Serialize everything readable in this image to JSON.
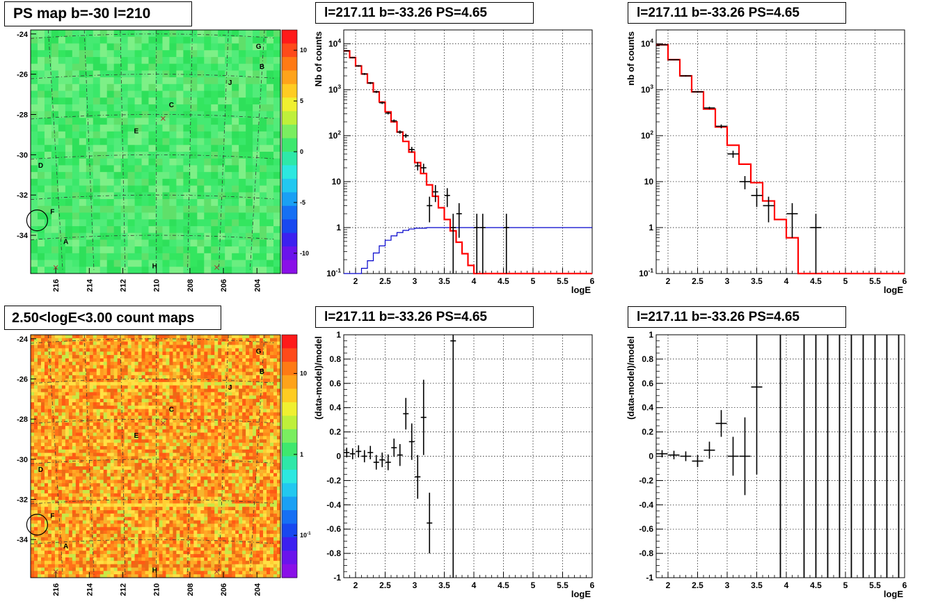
{
  "titles": {
    "map_ps": "PS map b=-30 l=210",
    "map_counts": "2.50<logE<3.00 count maps",
    "spectrum_left": "l=217.11 b=-33.26 PS=4.65",
    "spectrum_right": "l=217.11 b=-33.26 PS=4.65",
    "residual_left": "l=217.11 b=-33.26 PS=4.65",
    "residual_right": "l=217.11 b=-33.26 PS=4.65"
  },
  "colors": {
    "model_line": "#ff0000",
    "acceptance_line": "#0000cc",
    "data_points": "#000000",
    "grid": "#000000"
  },
  "chart_data": [
    {
      "id": "ps_map",
      "type": "heatmap",
      "title": "PS map b=-30 l=210",
      "x_ticks": [
        "216",
        "214",
        "212",
        "210",
        "208",
        "206",
        "204"
      ],
      "xlim": [
        217.5,
        202.6
      ],
      "y_ticks": [
        "-24",
        "-26",
        "-28",
        "-30",
        "-32",
        "-34"
      ],
      "ylim": [
        -35.9,
        -23.8
      ],
      "colorbar_ticks": [
        "10",
        "5",
        "0",
        "-5",
        "-10"
      ],
      "colorbar_range": [
        -12,
        12
      ],
      "source_labels": [
        {
          "name": "G",
          "l": 203.9,
          "b": -24.6
        },
        {
          "name": "B",
          "l": 203.7,
          "b": -25.6
        },
        {
          "name": "J",
          "l": 205.6,
          "b": -26.4
        },
        {
          "name": "C",
          "l": 209.1,
          "b": -27.5
        },
        {
          "name": "E",
          "l": 211.2,
          "b": -28.8
        },
        {
          "name": "D",
          "l": 216.9,
          "b": -30.5
        },
        {
          "name": "F",
          "l": 216.2,
          "b": -32.8
        },
        {
          "name": "A",
          "l": 215.4,
          "b": -34.3
        },
        {
          "name": "H",
          "l": 210.1,
          "b": -35.5
        }
      ],
      "crosses": [
        {
          "l": 209.6,
          "b": -28.2
        },
        {
          "l": 216.0,
          "b": -35.6
        },
        {
          "l": 206.4,
          "b": -35.6
        }
      ],
      "circle": {
        "l": 217.11,
        "b": -33.26
      }
    },
    {
      "id": "count_map",
      "type": "heatmap",
      "title": "2.50<logE<3.00 count maps",
      "x_ticks": [
        "216",
        "214",
        "212",
        "210",
        "208",
        "206",
        "204"
      ],
      "xlim": [
        217.5,
        202.6
      ],
      "y_ticks": [
        "-24",
        "-26",
        "-28",
        "-30",
        "-32",
        "-34"
      ],
      "ylim": [
        -35.9,
        -23.8
      ],
      "colorbar_ticks": [
        "10",
        "1",
        "10-1"
      ],
      "colorbar_range": [
        0.03,
        30
      ],
      "source_labels": [
        {
          "name": "G",
          "l": 203.9,
          "b": -24.6
        },
        {
          "name": "B",
          "l": 203.7,
          "b": -25.6
        },
        {
          "name": "J",
          "l": 205.6,
          "b": -26.4
        },
        {
          "name": "C",
          "l": 209.1,
          "b": -27.5
        },
        {
          "name": "E",
          "l": 211.2,
          "b": -28.8
        },
        {
          "name": "D",
          "l": 216.9,
          "b": -30.5
        },
        {
          "name": "F",
          "l": 216.2,
          "b": -32.8
        },
        {
          "name": "A",
          "l": 215.4,
          "b": -34.3
        },
        {
          "name": "H",
          "l": 210.1,
          "b": -35.5
        }
      ],
      "crosses": [
        {
          "l": 209.6,
          "b": -28.2
        },
        {
          "l": 216.0,
          "b": -35.6
        },
        {
          "l": 206.4,
          "b": -35.6
        }
      ],
      "circle": {
        "l": 217.11,
        "b": -33.26
      }
    },
    {
      "id": "spectrum_left",
      "type": "line",
      "title": "l=217.11 b=-33.26 PS=4.65",
      "xlabel": "logE",
      "ylabel": "Nb of counts",
      "xlim": [
        1.8,
        6
      ],
      "ylim": [
        0.1,
        20000
      ],
      "log_y": true,
      "x_ticks": [
        "2",
        "2.5",
        "3",
        "3.5",
        "4",
        "4.5",
        "5",
        "5.5",
        "6"
      ],
      "y_ticks": [
        "10-1",
        "1",
        "10",
        "102",
        "103",
        "104"
      ],
      "grid": true,
      "model_steps": [
        {
          "x0": 1.8,
          "x1": 1.9,
          "y": 7000
        },
        {
          "x0": 1.9,
          "x1": 2.0,
          "y": 5000
        },
        {
          "x0": 2.0,
          "x1": 2.1,
          "y": 3300
        },
        {
          "x0": 2.1,
          "x1": 2.2,
          "y": 2200
        },
        {
          "x0": 2.2,
          "x1": 2.3,
          "y": 1400
        },
        {
          "x0": 2.3,
          "x1": 2.4,
          "y": 900
        },
        {
          "x0": 2.4,
          "x1": 2.5,
          "y": 540
        },
        {
          "x0": 2.5,
          "x1": 2.6,
          "y": 330
        },
        {
          "x0": 2.6,
          "x1": 2.7,
          "y": 200
        },
        {
          "x0": 2.7,
          "x1": 2.8,
          "y": 120
        },
        {
          "x0": 2.8,
          "x1": 2.9,
          "y": 75
        },
        {
          "x0": 2.9,
          "x1": 3.0,
          "y": 44
        },
        {
          "x0": 3.0,
          "x1": 3.1,
          "y": 26
        },
        {
          "x0": 3.1,
          "x1": 3.2,
          "y": 15
        },
        {
          "x0": 3.2,
          "x1": 3.3,
          "y": 8.5
        },
        {
          "x0": 3.3,
          "x1": 3.4,
          "y": 4.8
        },
        {
          "x0": 3.4,
          "x1": 3.5,
          "y": 2.7
        },
        {
          "x0": 3.5,
          "x1": 3.6,
          "y": 1.5
        },
        {
          "x0": 3.6,
          "x1": 3.7,
          "y": 0.85
        },
        {
          "x0": 3.7,
          "x1": 3.8,
          "y": 0.48
        },
        {
          "x0": 3.8,
          "x1": 3.9,
          "y": 0.27
        },
        {
          "x0": 3.9,
          "x1": 4.0,
          "y": 0.15
        },
        {
          "x0": 4.0,
          "x1": 6.0,
          "y": 0.1
        }
      ],
      "acceptance_steps": [
        {
          "x0": 1.8,
          "x1": 2.1,
          "y": 0.1
        },
        {
          "x0": 2.1,
          "x1": 2.2,
          "y": 0.13
        },
        {
          "x0": 2.2,
          "x1": 2.3,
          "y": 0.19
        },
        {
          "x0": 2.3,
          "x1": 2.4,
          "y": 0.28
        },
        {
          "x0": 2.4,
          "x1": 2.5,
          "y": 0.4
        },
        {
          "x0": 2.5,
          "x1": 2.6,
          "y": 0.53
        },
        {
          "x0": 2.6,
          "x1": 2.7,
          "y": 0.66
        },
        {
          "x0": 2.7,
          "x1": 2.8,
          "y": 0.78
        },
        {
          "x0": 2.8,
          "x1": 2.9,
          "y": 0.87
        },
        {
          "x0": 2.9,
          "x1": 3.0,
          "y": 0.93
        },
        {
          "x0": 3.0,
          "x1": 3.2,
          "y": 0.97
        },
        {
          "x0": 3.2,
          "x1": 6.0,
          "y": 1.0
        }
      ],
      "points": [
        {
          "x": 1.85,
          "y": 7000,
          "ylo": 6800,
          "yhi": 7200
        },
        {
          "x": 1.95,
          "y": 5000,
          "ylo": 4850,
          "yhi": 5150
        },
        {
          "x": 2.05,
          "y": 3300,
          "ylo": 3180,
          "yhi": 3420
        },
        {
          "x": 2.15,
          "y": 2200,
          "ylo": 2100,
          "yhi": 2300
        },
        {
          "x": 2.25,
          "y": 1400,
          "ylo": 1330,
          "yhi": 1470
        },
        {
          "x": 2.35,
          "y": 900,
          "ylo": 850,
          "yhi": 950
        },
        {
          "x": 2.45,
          "y": 520,
          "ylo": 490,
          "yhi": 550
        },
        {
          "x": 2.55,
          "y": 310,
          "ylo": 290,
          "yhi": 330
        },
        {
          "x": 2.65,
          "y": 210,
          "ylo": 195,
          "yhi": 225
        },
        {
          "x": 2.75,
          "y": 120,
          "ylo": 110,
          "yhi": 130
        },
        {
          "x": 2.85,
          "y": 100,
          "ylo": 90,
          "yhi": 110
        },
        {
          "x": 2.95,
          "y": 50,
          "ylo": 43,
          "yhi": 57
        },
        {
          "x": 3.05,
          "y": 22,
          "ylo": 17.5,
          "yhi": 26.5
        },
        {
          "x": 3.15,
          "y": 20,
          "ylo": 15.5,
          "yhi": 24.5
        },
        {
          "x": 3.25,
          "y": 3,
          "ylo": 1.3,
          "yhi": 4.7
        },
        {
          "x": 3.35,
          "y": 6,
          "ylo": 3.6,
          "yhi": 8.4
        },
        {
          "x": 3.55,
          "y": 5,
          "ylo": 2.8,
          "yhi": 7.2
        },
        {
          "x": 3.65,
          "y": 1,
          "ylo": 0.1,
          "yhi": 2
        },
        {
          "x": 3.75,
          "y": 2,
          "ylo": 0.6,
          "yhi": 3.4
        },
        {
          "x": 4.05,
          "y": 1,
          "ylo": 0.1,
          "yhi": 2
        },
        {
          "x": 4.15,
          "y": 1,
          "ylo": 0.1,
          "yhi": 2
        },
        {
          "x": 4.55,
          "y": 1,
          "ylo": 0.1,
          "yhi": 2
        }
      ]
    },
    {
      "id": "spectrum_right",
      "type": "line",
      "title": "l=217.11 b=-33.26 PS=4.65",
      "xlabel": "logE",
      "ylabel": "nb of counts",
      "xlim": [
        1.8,
        6
      ],
      "ylim": [
        0.1,
        20000
      ],
      "log_y": true,
      "x_ticks": [
        "2",
        "2.5",
        "3",
        "3.5",
        "4",
        "4.5",
        "5",
        "5.5",
        "6"
      ],
      "y_ticks": [
        "10-1",
        "1",
        "10",
        "102",
        "103",
        "104"
      ],
      "grid": true,
      "model_steps": [
        {
          "x0": 1.8,
          "x1": 2.0,
          "y": 9500
        },
        {
          "x0": 2.0,
          "x1": 2.2,
          "y": 4500
        },
        {
          "x0": 2.2,
          "x1": 2.4,
          "y": 2000
        },
        {
          "x0": 2.4,
          "x1": 2.6,
          "y": 900
        },
        {
          "x0": 2.6,
          "x1": 2.8,
          "y": 380
        },
        {
          "x0": 2.8,
          "x1": 3.0,
          "y": 155
        },
        {
          "x0": 3.0,
          "x1": 3.2,
          "y": 62
        },
        {
          "x0": 3.2,
          "x1": 3.4,
          "y": 24
        },
        {
          "x0": 3.4,
          "x1": 3.6,
          "y": 9.5
        },
        {
          "x0": 3.6,
          "x1": 3.8,
          "y": 3.8
        },
        {
          "x0": 3.8,
          "x1": 4.0,
          "y": 1.5
        },
        {
          "x0": 4.0,
          "x1": 4.2,
          "y": 0.6
        },
        {
          "x0": 4.2,
          "x1": 6.0,
          "y": 0.1
        }
      ],
      "points": [
        {
          "x": 1.9,
          "y": 9500,
          "ylo": 9300,
          "yhi": 9700
        },
        {
          "x": 2.1,
          "y": 4500,
          "ylo": 4380,
          "yhi": 4620
        },
        {
          "x": 2.3,
          "y": 2000,
          "ylo": 1930,
          "yhi": 2070
        },
        {
          "x": 2.5,
          "y": 900,
          "ylo": 860,
          "yhi": 940
        },
        {
          "x": 2.7,
          "y": 400,
          "ylo": 375,
          "yhi": 425
        },
        {
          "x": 2.9,
          "y": 160,
          "ylo": 145,
          "yhi": 175
        },
        {
          "x": 3.1,
          "y": 40,
          "ylo": 33,
          "yhi": 47
        },
        {
          "x": 3.3,
          "y": 10,
          "ylo": 6.8,
          "yhi": 13.2
        },
        {
          "x": 3.5,
          "y": 5,
          "ylo": 2.8,
          "yhi": 7.2
        },
        {
          "x": 3.7,
          "y": 3,
          "ylo": 1.3,
          "yhi": 4.7
        },
        {
          "x": 4.1,
          "y": 2,
          "ylo": 0.6,
          "yhi": 3.4
        },
        {
          "x": 4.5,
          "y": 1,
          "ylo": 0.1,
          "yhi": 2
        }
      ]
    },
    {
      "id": "residual_left",
      "type": "scatter",
      "title": "l=217.11 b=-33.26 PS=4.65",
      "xlabel": "logE",
      "ylabel": "(data-model)/model",
      "xlim": [
        1.8,
        6
      ],
      "ylim": [
        -1,
        1
      ],
      "x_ticks": [
        "2",
        "2.5",
        "3",
        "3.5",
        "4",
        "4.5",
        "5",
        "5.5",
        "6"
      ],
      "y_ticks": [
        "-1",
        "-0.8",
        "-0.6",
        "-0.4",
        "-0.2",
        "0",
        "0.2",
        "0.4",
        "0.6",
        "0.8",
        "1"
      ],
      "grid": true,
      "points": [
        {
          "x": 1.85,
          "y": 0.03,
          "err": 0.04
        },
        {
          "x": 1.95,
          "y": 0.02,
          "err": 0.045
        },
        {
          "x": 2.05,
          "y": 0.04,
          "err": 0.05
        },
        {
          "x": 2.15,
          "y": 0.0,
          "err": 0.05
        },
        {
          "x": 2.25,
          "y": 0.03,
          "err": 0.055
        },
        {
          "x": 2.35,
          "y": -0.05,
          "err": 0.06
        },
        {
          "x": 2.45,
          "y": -0.03,
          "err": 0.06
        },
        {
          "x": 2.55,
          "y": -0.05,
          "err": 0.065
        },
        {
          "x": 2.65,
          "y": 0.07,
          "err": 0.075
        },
        {
          "x": 2.75,
          "y": 0.01,
          "err": 0.09
        },
        {
          "x": 2.85,
          "y": 0.35,
          "err": 0.13
        },
        {
          "x": 2.95,
          "y": 0.12,
          "err": 0.15
        },
        {
          "x": 3.05,
          "y": -0.17,
          "err": 0.18
        },
        {
          "x": 3.15,
          "y": 0.32,
          "err": 0.31
        },
        {
          "x": 3.25,
          "y": -0.55,
          "err": 0.25
        },
        {
          "x": 3.65,
          "y": 0.95,
          "err": 2.0
        }
      ]
    },
    {
      "id": "residual_right",
      "type": "scatter",
      "title": "l=217.11 b=-33.26 PS=4.65",
      "xlabel": "logE",
      "ylabel": "(data-model)/model",
      "xlim": [
        1.8,
        6
      ],
      "ylim": [
        -1,
        1
      ],
      "x_ticks": [
        "2",
        "2.5",
        "3",
        "3.5",
        "4",
        "4.5",
        "5",
        "5.5",
        "6"
      ],
      "y_ticks": [
        "-1",
        "-0.8",
        "-0.6",
        "-0.4",
        "-0.2",
        "0",
        "0.2",
        "0.4",
        "0.6",
        "0.8",
        "1"
      ],
      "grid": true,
      "points": [
        {
          "x": 1.9,
          "y": 0.02,
          "err": 0.03
        },
        {
          "x": 2.1,
          "y": 0.01,
          "err": 0.035
        },
        {
          "x": 2.3,
          "y": 0.0,
          "err": 0.04
        },
        {
          "x": 2.5,
          "y": -0.04,
          "err": 0.05
        },
        {
          "x": 2.7,
          "y": 0.05,
          "err": 0.07
        },
        {
          "x": 2.9,
          "y": 0.27,
          "err": 0.11
        },
        {
          "x": 3.1,
          "y": 0.0,
          "err": 0.16
        },
        {
          "x": 3.3,
          "y": 0.0,
          "err": 0.32
        },
        {
          "x": 3.5,
          "y": 0.57,
          "err": 0.72
        }
      ],
      "full_bars_x": [
        3.9,
        4.3,
        4.5,
        4.7,
        4.9,
        5.1,
        5.3,
        5.5,
        5.7,
        5.9
      ]
    }
  ]
}
